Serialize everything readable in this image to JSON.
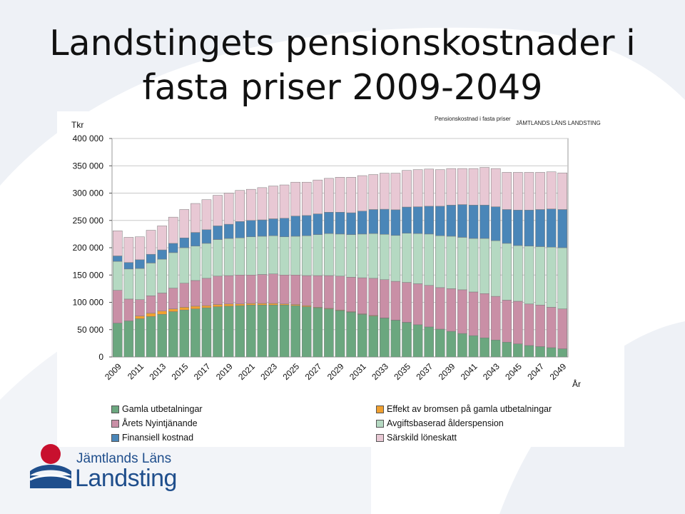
{
  "slide": {
    "title_line1": "Landstingets pensionskostnader i",
    "title_line2": "fasta priser 2009-2049"
  },
  "header": {
    "chart_caption": "Pensionskostnad i fasta priser",
    "org_name": "JÄMTLANDS LÄNS LANDSTING"
  },
  "logo": {
    "line1": "Jämtlands Läns",
    "line2": "Landsting",
    "colors": {
      "red": "#c8102e",
      "blue": "#1f4e8c"
    }
  },
  "chart_data": {
    "type": "bar",
    "stacked": true,
    "ylabel": "Tkr",
    "xlabel": "År",
    "ylim": [
      0,
      400000
    ],
    "yticks": [
      0,
      50000,
      100000,
      150000,
      200000,
      250000,
      300000,
      350000,
      400000
    ],
    "ytick_labels": [
      "0",
      "50 000",
      "100 000",
      "150 000",
      "200 000",
      "250 000",
      "300 000",
      "350 000",
      "400 000"
    ],
    "grid": true,
    "legend_position": "bottom",
    "categories": [
      "2009",
      "2010",
      "2011",
      "2012",
      "2013",
      "2014",
      "2015",
      "2016",
      "2017",
      "2018",
      "2019",
      "2020",
      "2021",
      "2022",
      "2023",
      "2024",
      "2025",
      "2026",
      "2027",
      "2028",
      "2029",
      "2030",
      "2031",
      "2032",
      "2033",
      "2034",
      "2035",
      "2036",
      "2037",
      "2038",
      "2039",
      "2040",
      "2041",
      "2042",
      "2043",
      "2044",
      "2045",
      "2046",
      "2047",
      "2048",
      "2049"
    ],
    "tick_labels": [
      "2009",
      "2011",
      "2013",
      "2015",
      "2017",
      "2019",
      "2021",
      "2023",
      "2025",
      "2027",
      "2029",
      "2031",
      "2033",
      "2035",
      "2037",
      "2039",
      "2041",
      "2043",
      "2045",
      "2047",
      "2049"
    ],
    "series": [
      {
        "name": "Gamla utbetalningar",
        "color": "#6ba77f",
        "values": [
          62000,
          66000,
          70000,
          74000,
          78000,
          83000,
          86000,
          88000,
          90000,
          92000,
          93000,
          94000,
          95000,
          95000,
          95000,
          95000,
          94000,
          92000,
          90000,
          88000,
          85000,
          82000,
          78000,
          75000,
          71000,
          67000,
          63000,
          59000,
          55000,
          51000,
          47000,
          43000,
          39000,
          35000,
          31000,
          27000,
          24000,
          21000,
          19000,
          17000,
          15000
        ]
      },
      {
        "name": "Effekt av bromsen på gamla utbetalningar",
        "color": "#f0a030",
        "values": [
          0,
          0,
          5000,
          6000,
          6000,
          5000,
          5000,
          5000,
          4000,
          4000,
          4000,
          3000,
          3000,
          3000,
          3000,
          2000,
          2000,
          2000,
          1000,
          1000,
          1000,
          1000,
          1000,
          1000,
          500,
          500,
          500,
          0,
          0,
          0,
          0,
          0,
          0,
          0,
          0,
          0,
          0,
          0,
          0,
          0,
          0
        ]
      },
      {
        "name": "Årets Nyintjänande",
        "color": "#c98fa6",
        "values": [
          60000,
          40000,
          30000,
          32000,
          33000,
          38000,
          44000,
          47000,
          50000,
          52000,
          52000,
          53000,
          52000,
          53000,
          54000,
          53000,
          54000,
          55000,
          58000,
          60000,
          62000,
          63000,
          66000,
          68000,
          70000,
          71000,
          73000,
          75000,
          76000,
          76000,
          78000,
          80000,
          80000,
          81000,
          80000,
          77000,
          78000,
          76000,
          76000,
          74000,
          73000
        ]
      },
      {
        "name": "Avgiftsbaserad ålderspension",
        "color": "#b5d9c2",
        "values": [
          53000,
          55000,
          57000,
          60000,
          62000,
          65000,
          65000,
          63000,
          64000,
          67000,
          68000,
          68000,
          70000,
          70000,
          70000,
          70000,
          71000,
          73000,
          75000,
          77000,
          77000,
          78000,
          80000,
          82000,
          83000,
          84000,
          90000,
          92000,
          94000,
          95000,
          96000,
          96000,
          98000,
          101000,
          102000,
          104000,
          102000,
          106000,
          107000,
          110000,
          112000
        ]
      },
      {
        "name": "Finansiell kostnad",
        "color": "#4a86b8",
        "values": [
          10000,
          12000,
          16000,
          16000,
          17000,
          17000,
          18000,
          25000,
          25000,
          25000,
          26000,
          30000,
          30000,
          30000,
          31000,
          34000,
          37000,
          37000,
          38000,
          39000,
          40000,
          40000,
          42000,
          44000,
          46000,
          47000,
          48000,
          49000,
          51000,
          54000,
          57000,
          60000,
          61000,
          61000,
          62000,
          62000,
          65000,
          66000,
          68000,
          70000,
          70000
        ]
      },
      {
        "name": "Särskild löneskatt",
        "color": "#e8c8d4",
        "values": [
          46000,
          46000,
          42000,
          44000,
          44000,
          48000,
          52000,
          53000,
          55000,
          56000,
          57000,
          57000,
          57000,
          59000,
          60000,
          61000,
          62000,
          61000,
          62000,
          62000,
          64000,
          65000,
          65000,
          64000,
          66000,
          67000,
          67000,
          68000,
          68000,
          67000,
          67000,
          66000,
          67000,
          69000,
          70000,
          68000,
          69000,
          69000,
          68000,
          68000,
          67000
        ]
      }
    ]
  }
}
